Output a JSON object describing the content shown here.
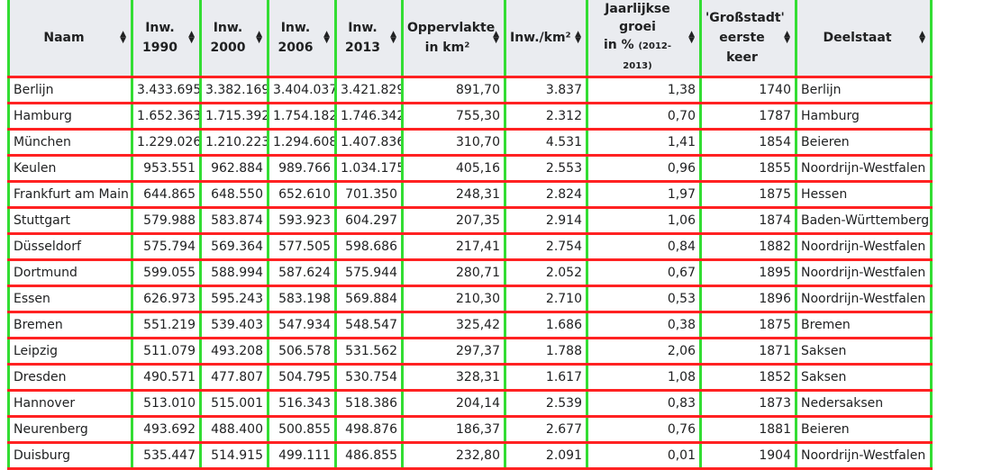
{
  "table": {
    "headers": {
      "naam": "Naam",
      "inw1990": [
        "Inw.",
        "1990"
      ],
      "inw2000": [
        "Inw.",
        "2000"
      ],
      "inw2006": [
        "Inw.",
        "2006"
      ],
      "inw2013": [
        "Inw.",
        "2013"
      ],
      "opp": [
        "Oppervlakte",
        "in km²"
      ],
      "dicht": "Inw./km²",
      "groei": [
        "Jaarlijkse",
        "groei",
        "in %",
        "(2012-2013)"
      ],
      "gross": [
        "'Großstadt'",
        "eerste keer"
      ],
      "deelstaat": "Deelstaat"
    },
    "sort_icon": "sort-arrows-icon",
    "rows": [
      {
        "naam": "Berlijn",
        "inw1990": "3.433.695",
        "inw2000": "3.382.169",
        "inw2006": "3.404.037",
        "inw2013": "3.421.829",
        "opp": "891,70",
        "dicht": "3.837",
        "groei": "1,38",
        "gross": "1740",
        "deelstaat": "Berlijn"
      },
      {
        "naam": "Hamburg",
        "inw1990": "1.652.363",
        "inw2000": "1.715.392",
        "inw2006": "1.754.182",
        "inw2013": "1.746.342",
        "opp": "755,30",
        "dicht": "2.312",
        "groei": "0,70",
        "gross": "1787",
        "deelstaat": "Hamburg"
      },
      {
        "naam": "München",
        "inw1990": "1.229.026",
        "inw2000": "1.210.223",
        "inw2006": "1.294.608",
        "inw2013": "1.407.836",
        "opp": "310,70",
        "dicht": "4.531",
        "groei": "1,41",
        "gross": "1854",
        "deelstaat": "Beieren"
      },
      {
        "naam": "Keulen",
        "inw1990": "953.551",
        "inw2000": "962.884",
        "inw2006": "989.766",
        "inw2013": "1.034.175",
        "opp": "405,16",
        "dicht": "2.553",
        "groei": "0,96",
        "gross": "1855",
        "deelstaat": "Noordrijn-Westfalen"
      },
      {
        "naam": "Frankfurt am Main",
        "inw1990": "644.865",
        "inw2000": "648.550",
        "inw2006": "652.610",
        "inw2013": "701.350",
        "opp": "248,31",
        "dicht": "2.824",
        "groei": "1,97",
        "gross": "1875",
        "deelstaat": "Hessen"
      },
      {
        "naam": "Stuttgart",
        "inw1990": "579.988",
        "inw2000": "583.874",
        "inw2006": "593.923",
        "inw2013": "604.297",
        "opp": "207,35",
        "dicht": "2.914",
        "groei": "1,06",
        "gross": "1874",
        "deelstaat": "Baden-Württemberg"
      },
      {
        "naam": "Düsseldorf",
        "inw1990": "575.794",
        "inw2000": "569.364",
        "inw2006": "577.505",
        "inw2013": "598.686",
        "opp": "217,41",
        "dicht": "2.754",
        "groei": "0,84",
        "gross": "1882",
        "deelstaat": "Noordrijn-Westfalen"
      },
      {
        "naam": "Dortmund",
        "inw1990": "599.055",
        "inw2000": "588.994",
        "inw2006": "587.624",
        "inw2013": "575.944",
        "opp": "280,71",
        "dicht": "2.052",
        "groei": "0,67",
        "gross": "1895",
        "deelstaat": "Noordrijn-Westfalen"
      },
      {
        "naam": "Essen",
        "inw1990": "626.973",
        "inw2000": "595.243",
        "inw2006": "583.198",
        "inw2013": "569.884",
        "opp": "210,30",
        "dicht": "2.710",
        "groei": "0,53",
        "gross": "1896",
        "deelstaat": "Noordrijn-Westfalen"
      },
      {
        "naam": "Bremen",
        "inw1990": "551.219",
        "inw2000": "539.403",
        "inw2006": "547.934",
        "inw2013": "548.547",
        "opp": "325,42",
        "dicht": "1.686",
        "groei": "0,38",
        "gross": "1875",
        "deelstaat": "Bremen"
      },
      {
        "naam": "Leipzig",
        "inw1990": "511.079",
        "inw2000": "493.208",
        "inw2006": "506.578",
        "inw2013": "531.562",
        "opp": "297,37",
        "dicht": "1.788",
        "groei": "2,06",
        "gross": "1871",
        "deelstaat": "Saksen"
      },
      {
        "naam": "Dresden",
        "inw1990": "490.571",
        "inw2000": "477.807",
        "inw2006": "504.795",
        "inw2013": "530.754",
        "opp": "328,31",
        "dicht": "1.617",
        "groei": "1,08",
        "gross": "1852",
        "deelstaat": "Saksen"
      },
      {
        "naam": "Hannover",
        "inw1990": "513.010",
        "inw2000": "515.001",
        "inw2006": "516.343",
        "inw2013": "518.386",
        "opp": "204,14",
        "dicht": "2.539",
        "groei": "0,83",
        "gross": "1873",
        "deelstaat": "Nedersaksen"
      },
      {
        "naam": "Neurenberg",
        "inw1990": "493.692",
        "inw2000": "488.400",
        "inw2006": "500.855",
        "inw2013": "498.876",
        "opp": "186,37",
        "dicht": "2.677",
        "groei": "0,76",
        "gross": "1881",
        "deelstaat": "Beieren"
      },
      {
        "naam": "Duisburg",
        "inw1990": "535.447",
        "inw2000": "514.915",
        "inw2006": "499.111",
        "inw2013": "486.855",
        "opp": "232,80",
        "dicht": "2.091",
        "groei": "0,01",
        "gross": "1904",
        "deelstaat": "Noordrijn-Westfalen"
      }
    ]
  },
  "colors": {
    "header_bg": "#eaecf0",
    "column_border": "#33dd33",
    "row_border": "#ff2222"
  }
}
